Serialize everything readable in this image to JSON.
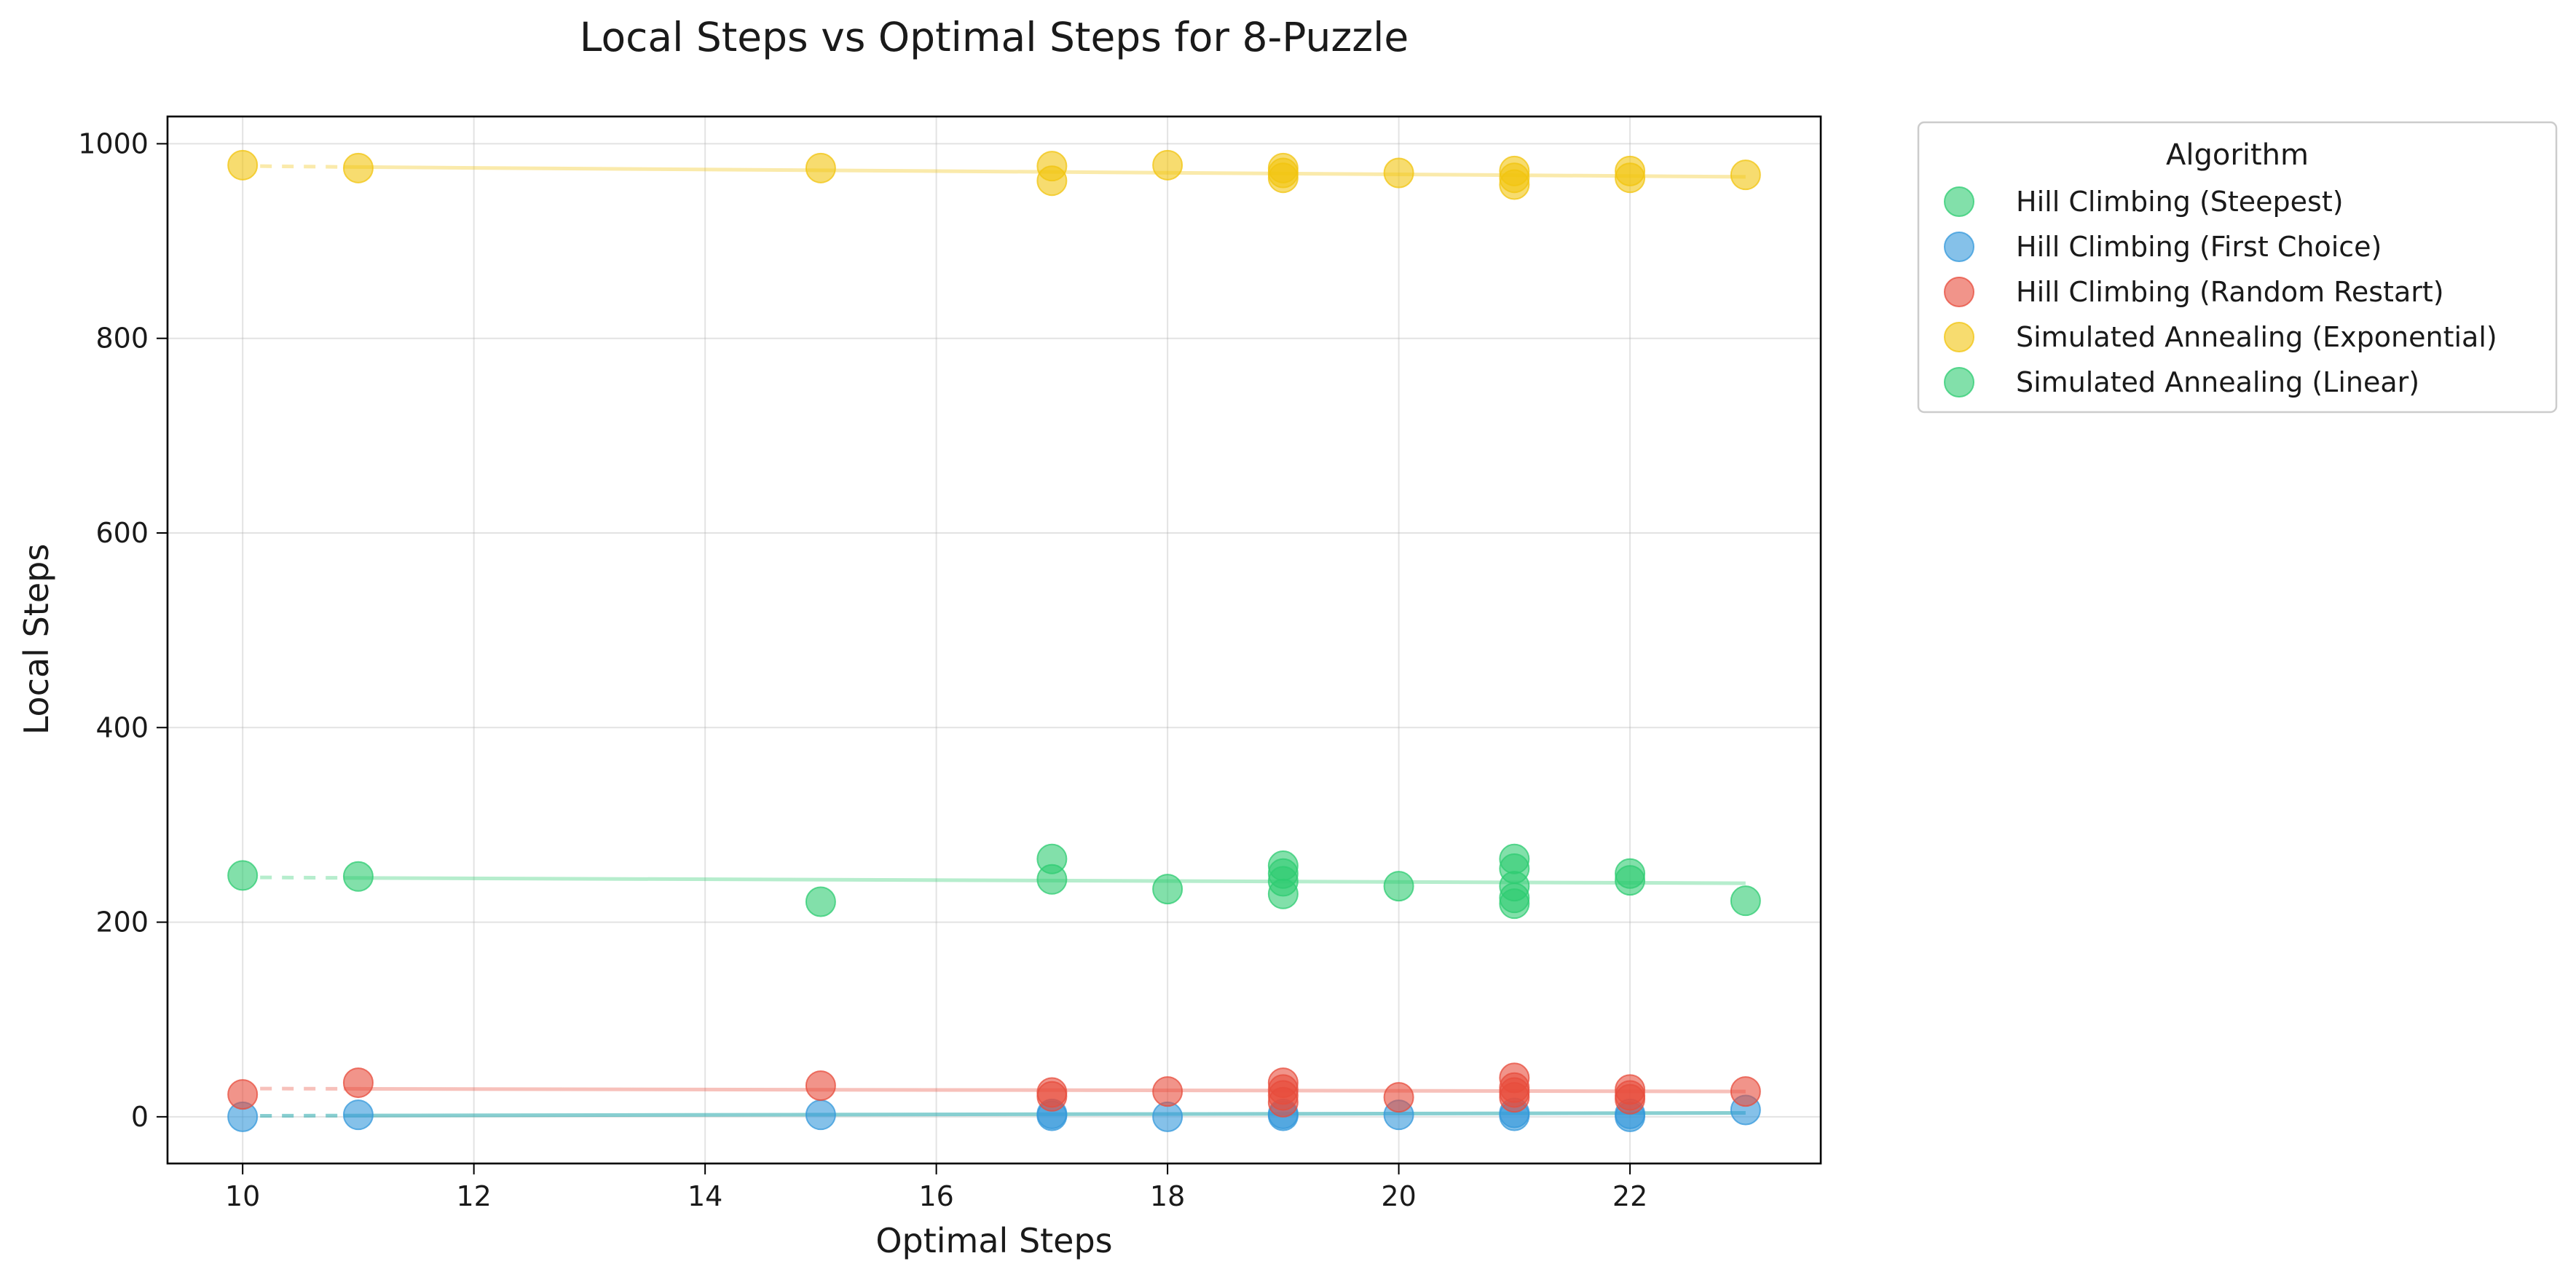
{
  "chart_data": {
    "type": "scatter",
    "title": "Local Steps vs Optimal Steps for 8-Puzzle",
    "xlabel": "Optimal Steps",
    "ylabel": "Local Steps",
    "xlim": [
      9.35,
      23.65
    ],
    "ylim": [
      -48,
      1028
    ],
    "xticks": [
      10,
      12,
      14,
      16,
      18,
      20,
      22
    ],
    "yticks": [
      0,
      200,
      400,
      600,
      800,
      1000
    ],
    "grid": true,
    "legend": {
      "title": "Algorithm",
      "placement": "outside upper right"
    },
    "series": [
      {
        "name": "Hill Climbing (Steepest)",
        "color": "#2ecc71",
        "marker_visible": false,
        "points": [
          [
            10,
            0
          ],
          [
            11,
            2
          ],
          [
            15,
            1
          ],
          [
            17,
            2
          ],
          [
            18,
            0
          ],
          [
            19,
            1
          ],
          [
            20,
            2
          ],
          [
            21,
            1
          ],
          [
            22,
            0
          ],
          [
            23,
            6
          ]
        ],
        "trend": [
          [
            10,
            1
          ],
          [
            23,
            4
          ]
        ]
      },
      {
        "name": "Hill Climbing (First Choice)",
        "color": "#3498db",
        "points": [
          [
            10,
            0
          ],
          [
            11,
            2
          ],
          [
            15,
            2
          ],
          [
            17,
            3
          ],
          [
            17,
            1
          ],
          [
            18,
            0
          ],
          [
            19,
            3
          ],
          [
            19,
            1
          ],
          [
            20,
            2
          ],
          [
            21,
            4
          ],
          [
            21,
            1
          ],
          [
            22,
            0
          ],
          [
            22,
            3
          ],
          [
            23,
            7
          ]
        ],
        "trend": [
          [
            10,
            1
          ],
          [
            23,
            4
          ]
        ]
      },
      {
        "name": "Hill Climbing (Random Restart)",
        "color": "#e74c3c",
        "points": [
          [
            10,
            23
          ],
          [
            11,
            35
          ],
          [
            15,
            32
          ],
          [
            17,
            25
          ],
          [
            17,
            21
          ],
          [
            18,
            26
          ],
          [
            19,
            35
          ],
          [
            19,
            28
          ],
          [
            19,
            22
          ],
          [
            19,
            15
          ],
          [
            20,
            20
          ],
          [
            21,
            40
          ],
          [
            21,
            30
          ],
          [
            21,
            25
          ],
          [
            21,
            20
          ],
          [
            22,
            28
          ],
          [
            22,
            22
          ],
          [
            22,
            18
          ],
          [
            23,
            26
          ]
        ],
        "trend": [
          [
            10,
            29
          ],
          [
            23,
            26
          ]
        ]
      },
      {
        "name": "Simulated Annealing (Exponential)",
        "color": "#f1c40f",
        "points": [
          [
            10,
            978
          ],
          [
            11,
            975
          ],
          [
            15,
            975
          ],
          [
            17,
            977
          ],
          [
            17,
            962
          ],
          [
            18,
            978
          ],
          [
            19,
            975
          ],
          [
            19,
            970
          ],
          [
            19,
            965
          ],
          [
            20,
            970
          ],
          [
            21,
            972
          ],
          [
            21,
            965
          ],
          [
            21,
            958
          ],
          [
            22,
            972
          ],
          [
            22,
            965
          ],
          [
            23,
            968
          ]
        ],
        "trend": [
          [
            10,
            977
          ],
          [
            23,
            966
          ]
        ]
      },
      {
        "name": "Simulated Annealing (Linear)",
        "color": "#2ecc71",
        "points": [
          [
            10,
            248
          ],
          [
            11,
            247
          ],
          [
            15,
            221
          ],
          [
            17,
            265
          ],
          [
            17,
            244
          ],
          [
            18,
            234
          ],
          [
            19,
            258
          ],
          [
            19,
            250
          ],
          [
            19,
            242
          ],
          [
            19,
            229
          ],
          [
            20,
            237
          ],
          [
            21,
            265
          ],
          [
            21,
            255
          ],
          [
            21,
            237
          ],
          [
            21,
            225
          ],
          [
            21,
            219
          ],
          [
            22,
            250
          ],
          [
            22,
            243
          ],
          [
            23,
            222
          ]
        ],
        "trend": [
          [
            10,
            246
          ],
          [
            23,
            240
          ]
        ]
      }
    ]
  }
}
